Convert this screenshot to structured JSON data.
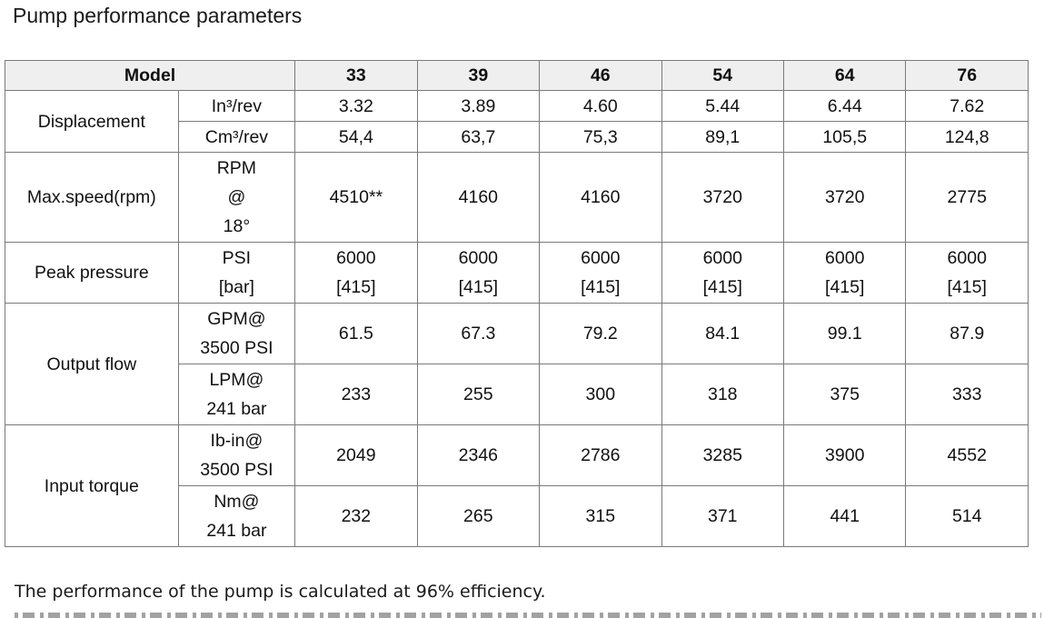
{
  "title": "Pump performance parameters",
  "table": {
    "header": {
      "model_label": "Model",
      "models": [
        "33",
        "39",
        "46",
        "54",
        "64",
        "76"
      ]
    },
    "displacement": {
      "label": "Displacement",
      "in3": {
        "unit": "In³/rev",
        "values": [
          "3.32",
          "3.89",
          "4.60",
          "5.44",
          "6.44",
          "7.62"
        ]
      },
      "cm3": {
        "unit": "Cm³/rev",
        "values": [
          "54,4",
          "63,7",
          "75,3",
          "89,1",
          "105,5",
          "124,8"
        ]
      }
    },
    "max_speed": {
      "label": "Max.speed(rpm)",
      "unit_lines": [
        "RPM",
        "@",
        "18°"
      ],
      "values": [
        "4510**",
        "4160",
        "4160",
        "3720",
        "3720",
        "2775"
      ]
    },
    "peak_pressure": {
      "label": "Peak pressure",
      "unit_lines": [
        "PSI",
        "[bar]"
      ],
      "psi": [
        "6000",
        "6000",
        "6000",
        "6000",
        "6000",
        "6000"
      ],
      "bar": [
        "[415]",
        "[415]",
        "[415]",
        "[415]",
        "[415]",
        "[415]"
      ]
    },
    "output_flow": {
      "label": "Output flow",
      "gpm": {
        "unit_lines": [
          "GPM@",
          "3500 PSI"
        ],
        "values": [
          "61.5",
          "67.3",
          "79.2",
          "84.1",
          "99.1",
          "87.9"
        ]
      },
      "lpm": {
        "unit_lines": [
          "LPM@",
          "241 bar"
        ],
        "values": [
          "233",
          "255",
          "300",
          "318",
          "375",
          "333"
        ]
      }
    },
    "input_torque": {
      "label": "Input torque",
      "lbin": {
        "unit_lines": [
          "Ib-in@",
          "3500 PSI"
        ],
        "values": [
          "2049",
          "2346",
          "2786",
          "3285",
          "3900",
          "4552"
        ]
      },
      "nm": {
        "unit_lines": [
          "Nm@",
          "241 bar"
        ],
        "values": [
          "232",
          "265",
          "315",
          "371",
          "441",
          "514"
        ]
      }
    }
  },
  "footnote": "The performance of the pump is calculated at 96% efficiency."
}
